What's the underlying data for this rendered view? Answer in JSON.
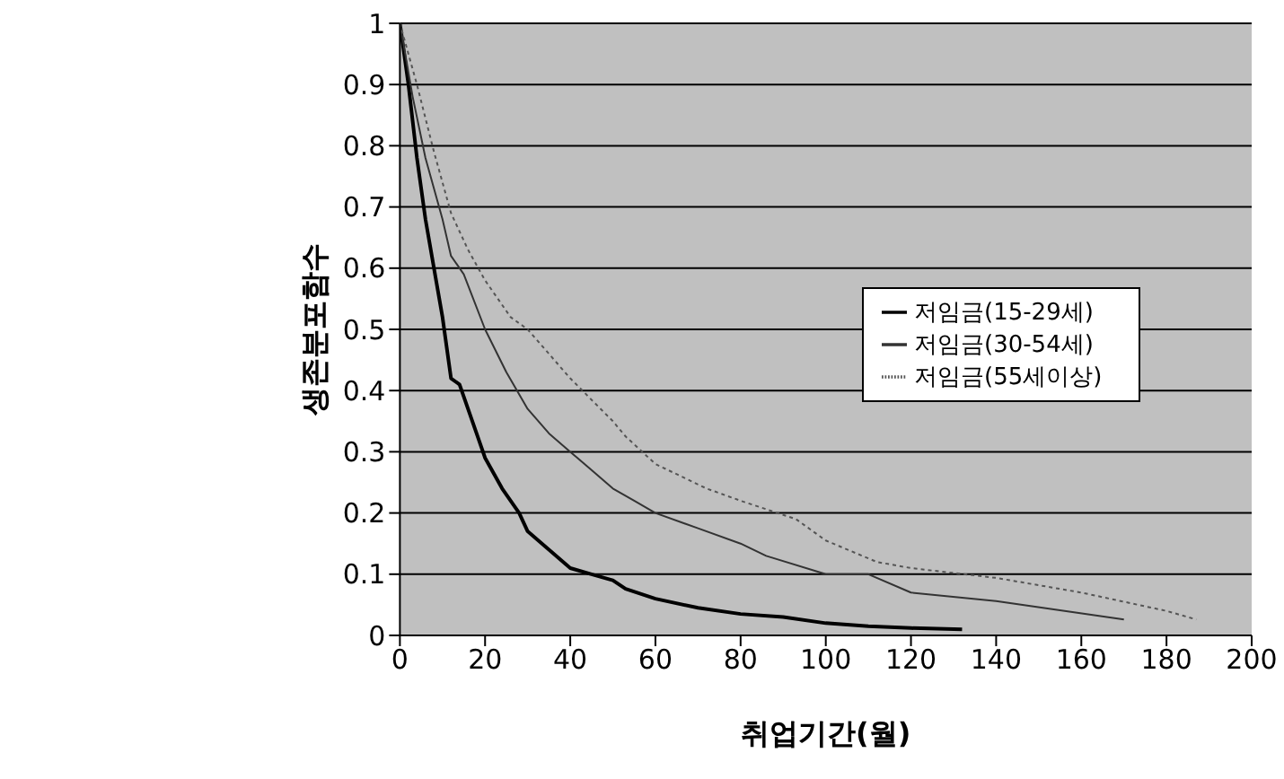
{
  "chart_data": {
    "type": "line",
    "xlabel": "취업기간(월)",
    "ylabel": "생존분포함수",
    "xlim": [
      0,
      200
    ],
    "xticks": [
      0,
      20,
      40,
      60,
      80,
      100,
      120,
      140,
      160,
      180,
      200
    ],
    "ylim": [
      0,
      1
    ],
    "yticks": [
      0,
      0.1,
      0.2,
      0.3,
      0.4,
      0.5,
      0.6,
      0.7,
      0.8,
      0.9,
      1
    ],
    "grid": "y",
    "legend": "right",
    "marker": "none",
    "series": [
      {
        "name": "저임금(15-29세)",
        "color": "#000000",
        "line_style": "solid",
        "x": [
          0,
          2,
          4,
          6,
          8,
          10,
          12,
          14,
          16,
          18,
          20,
          24,
          28,
          30,
          35,
          40,
          45,
          50,
          53,
          60,
          70,
          80,
          90,
          100,
          110,
          120,
          132
        ],
        "values": [
          1,
          0.9,
          0.78,
          0.68,
          0.6,
          0.52,
          0.42,
          0.41,
          0.37,
          0.33,
          0.29,
          0.24,
          0.2,
          0.17,
          0.14,
          0.11,
          0.1,
          0.09,
          0.076,
          0.06,
          0.045,
          0.035,
          0.03,
          0.02,
          0.015,
          0.012,
          0.01
        ]
      },
      {
        "name": "저임금(30-54세)",
        "color": "#333333",
        "line_style": "solid",
        "x": [
          0,
          3,
          6,
          10,
          12,
          15,
          20,
          25,
          30,
          35,
          40,
          45,
          50,
          55,
          60,
          70,
          80,
          86,
          100,
          110,
          120,
          140,
          170
        ],
        "values": [
          1,
          0.88,
          0.78,
          0.68,
          0.62,
          0.59,
          0.5,
          0.43,
          0.37,
          0.33,
          0.3,
          0.27,
          0.24,
          0.22,
          0.2,
          0.175,
          0.15,
          0.13,
          0.1,
          0.1,
          0.07,
          0.056,
          0.026
        ]
      },
      {
        "name": "저임금(55세이상)",
        "color": "#555555",
        "line_style": "dotted",
        "x": [
          0,
          4,
          8,
          12,
          16,
          20,
          26,
          30,
          40,
          50,
          53,
          60,
          72,
          80,
          93,
          100,
          112,
          120,
          140,
          160,
          180,
          187
        ],
        "values": [
          1,
          0.9,
          0.79,
          0.69,
          0.63,
          0.58,
          0.52,
          0.5,
          0.42,
          0.35,
          0.325,
          0.28,
          0.24,
          0.22,
          0.19,
          0.155,
          0.12,
          0.11,
          0.094,
          0.07,
          0.04,
          0.026
        ]
      }
    ]
  }
}
